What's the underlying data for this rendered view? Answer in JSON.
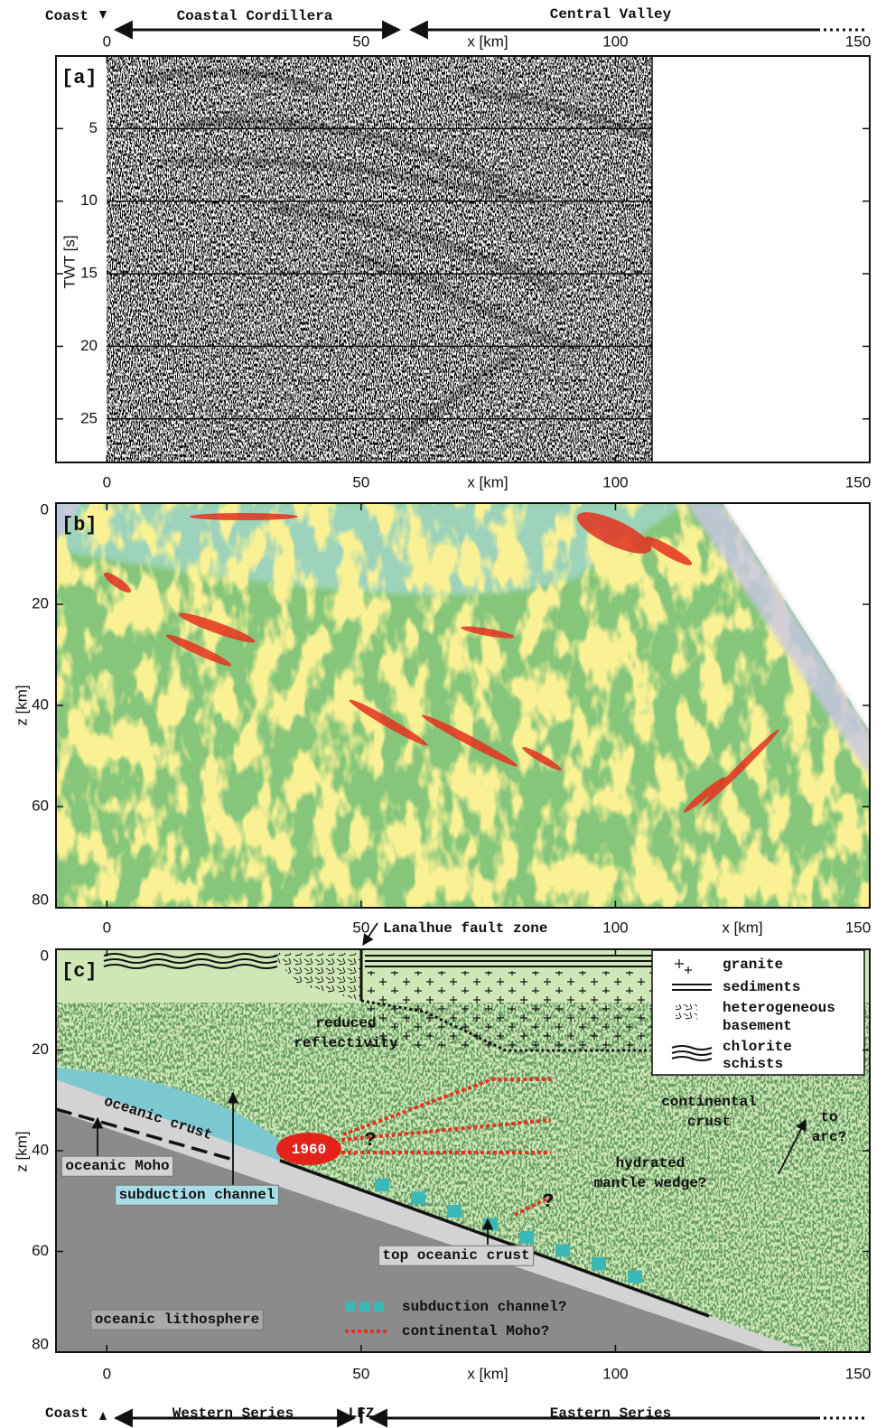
{
  "header": {
    "coast": "Coast",
    "regions": [
      "Coastal Cordillera",
      "Central Valley"
    ]
  },
  "footer": {
    "coast": "Coast",
    "regions": [
      "Western Series",
      "LFZ",
      "Eastern Series"
    ]
  },
  "chart_data": [
    {
      "type": "seismic-section",
      "panel_label": "[a]",
      "xlabel": "x [km]",
      "ylabel": "TWT [s]",
      "xlim": [
        -10,
        150
      ],
      "xticks": [
        0,
        50,
        100,
        150
      ],
      "ylim": [
        0,
        28
      ],
      "yticks": [
        5,
        10,
        15,
        20,
        25
      ],
      "grid": true
    },
    {
      "type": "migrated-image",
      "panel_label": "[b]",
      "xlabel": "x [km]",
      "ylabel": "z [km]",
      "xlim": [
        -10,
        150
      ],
      "xticks": [
        0,
        50,
        100,
        150
      ],
      "ylim": [
        0,
        80
      ],
      "yticks": [
        0,
        20,
        40,
        60,
        80
      ],
      "grid": false
    },
    {
      "type": "interpretation",
      "panel_label": "[c]",
      "xlabel": "x [km]",
      "ylabel": "z [km]",
      "xlim": [
        -10,
        150
      ],
      "xticks": [
        0,
        50,
        100,
        150
      ],
      "ylim": [
        0,
        80
      ],
      "yticks": [
        0,
        20,
        40,
        60,
        80
      ],
      "grid": false,
      "annotations": [
        [
          "Lanalhue fault zone"
        ],
        [
          "reduced",
          "reflectivity"
        ],
        [
          "continental",
          "crust"
        ],
        [
          "to",
          "arc?"
        ],
        [
          "hydrated",
          "mantle wedge?"
        ],
        [
          "oceanic crust"
        ],
        [
          "oceanic Moho"
        ],
        [
          "subduction channel"
        ],
        [
          "top oceanic crust"
        ],
        [
          "oceanic lithosphere"
        ],
        [
          "1960"
        ],
        [
          "?"
        ],
        [
          "?"
        ]
      ],
      "legend": [
        [
          "granite"
        ],
        [
          "sediments"
        ],
        [
          "heterogeneous",
          "basement"
        ],
        [
          "chlorite",
          "schists"
        ]
      ],
      "legend_lower": [
        "subduction channel?",
        "continental Moho?"
      ]
    }
  ]
}
